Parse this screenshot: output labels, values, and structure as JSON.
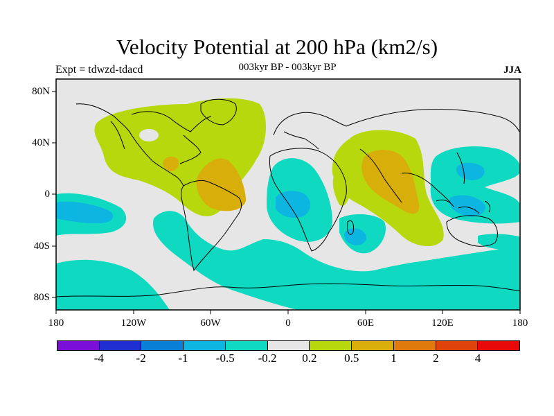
{
  "title": "Velocity Potential at 200 hPa (km2/s)",
  "subtitle": "003kyr BP - 003kyr BP",
  "left_label": "Expt = tdwzd-tdacd",
  "right_label": "JJA",
  "lat_labels": [
    "80N",
    "40N",
    "0",
    "40S",
    "80S"
  ],
  "lon_labels": [
    "180",
    "120W",
    "60W",
    "0",
    "60E",
    "120E",
    "180"
  ],
  "colorbar": {
    "colors": [
      "#7a10d8",
      "#1f2fd2",
      "#0a7fd8",
      "#0cb6e0",
      "#0fd9c0",
      "#e6e6e6",
      "#b6d80c",
      "#d8ae0a",
      "#e07a0c",
      "#e0420c",
      "#e80a0a"
    ],
    "labels": [
      "-4",
      "-2",
      "-1",
      "-0.5",
      "-0.2",
      "0.2",
      "0.5",
      "1",
      "2",
      "4"
    ]
  },
  "map_colors": {
    "background": "#e6e6e6",
    "neg_weak": "#0fd9c0",
    "neg_mod": "#0cb6e0",
    "pos_weak": "#b6d80c",
    "pos_mod": "#d8ae0a"
  }
}
